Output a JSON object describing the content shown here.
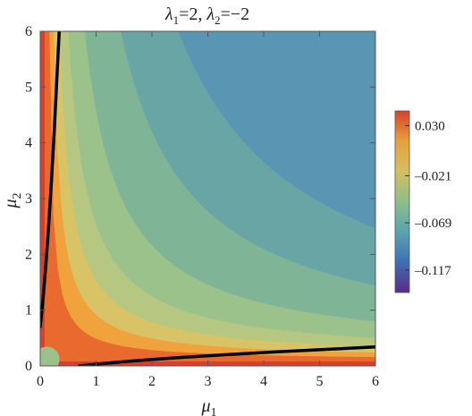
{
  "chart_data": {
    "type": "contour",
    "title": "λ1=2, λ2=−2",
    "title_parts": {
      "l1": "λ",
      "l1_sub": "1",
      "l1_val": "=2, ",
      "l2": "λ",
      "l2_sub": "2",
      "l2_val": "=−2"
    },
    "xlabel": "μ1",
    "xlabel_parts": {
      "sym": "μ",
      "sub": "1"
    },
    "ylabel": "μ2",
    "ylabel_parts": {
      "sym": "μ",
      "sub": "2"
    },
    "xlim": [
      0,
      6
    ],
    "ylim": [
      0,
      6
    ],
    "x_ticks": [
      "0",
      "1",
      "2",
      "3",
      "4",
      "5",
      "6"
    ],
    "y_ticks": [
      "0",
      "1",
      "2",
      "3",
      "4",
      "5",
      "6"
    ],
    "colorbar": {
      "min": -0.14,
      "max": 0.045,
      "tick_labels": [
        "0.030",
        "–0.021",
        "–0.069",
        "–0.117"
      ],
      "tick_values": [
        0.03,
        -0.021,
        -0.069,
        -0.117
      ],
      "colors": [
        "#5b2a86",
        "#3f6fb4",
        "#5aa4b0",
        "#8cbf8a",
        "#d4c062",
        "#e6a13d",
        "#d9402b"
      ]
    },
    "contour_levels": [
      {
        "threshold": 0.0,
        "color": "#e86a2e"
      },
      {
        "threshold": 0.35,
        "color": "#f0a23c"
      },
      {
        "threshold": 0.7,
        "color": "#d8c467"
      },
      {
        "threshold": 1.2,
        "color": "#b6c782"
      },
      {
        "threshold": 2.0,
        "color": "#9bc28a"
      },
      {
        "threshold": 3.6,
        "color": "#7fb497"
      },
      {
        "threshold": 7.2,
        "color": "#6aa5a6"
      },
      {
        "threshold": 13.0,
        "color": "#5896b3"
      }
    ],
    "zero_curves": [
      {
        "name": "",
        "x": [
          0.0,
          0.05,
          0.1,
          0.15,
          0.2,
          0.25,
          0.3,
          0.34
        ],
        "y": [
          0.7,
          1.2,
          1.8,
          2.5,
          3.3,
          4.2,
          5.2,
          6.0
        ]
      },
      {
        "name": "",
        "x": [
          0.7,
          1.2,
          1.8,
          2.5,
          3.3,
          4.2,
          5.2,
          6.0
        ],
        "y": [
          0.0,
          0.05,
          0.1,
          0.15,
          0.2,
          0.25,
          0.3,
          0.34
        ]
      }
    ]
  }
}
